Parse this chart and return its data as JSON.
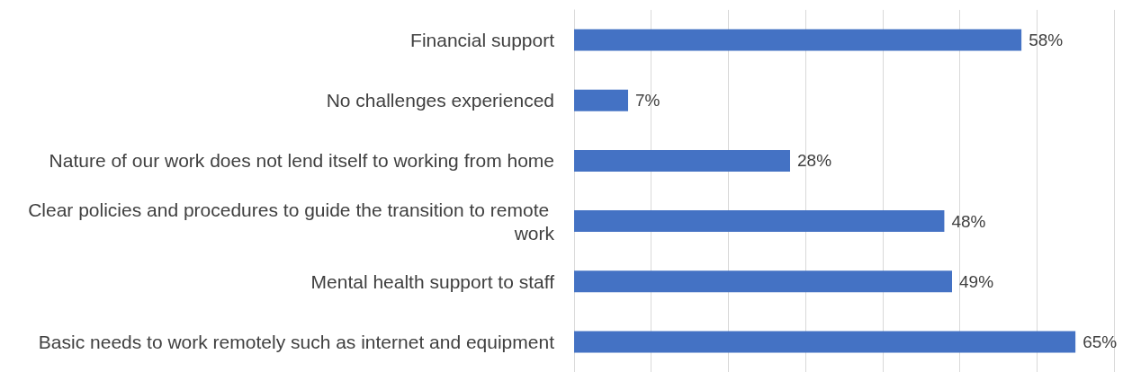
{
  "chart_data": {
    "type": "bar",
    "orientation": "horizontal",
    "categories": [
      "Financial support",
      "No challenges experienced",
      "Nature of our work does not lend itself to working from home",
      "Clear policies and procedures to guide the transition to remote work",
      "Mental health support to staff",
      "Basic needs to work remotely such as internet and equipment"
    ],
    "values": [
      58,
      7,
      28,
      48,
      49,
      65
    ],
    "value_labels": [
      "58%",
      "7%",
      "28%",
      "48%",
      "49%",
      "65%"
    ],
    "color": "#4472c4",
    "xlim": [
      0,
      70
    ],
    "xticks": [
      {
        "value": 0,
        "label": null
      },
      {
        "value": 10,
        "label": null
      },
      {
        "value": 20,
        "label": null
      },
      {
        "value": 30,
        "label": null
      },
      {
        "value": 40,
        "label": null
      },
      {
        "value": 50,
        "label": null
      },
      {
        "value": 60,
        "label": null
      },
      {
        "value": 70,
        "label": null
      }
    ],
    "grid": "x",
    "tick_labels": "y"
  }
}
